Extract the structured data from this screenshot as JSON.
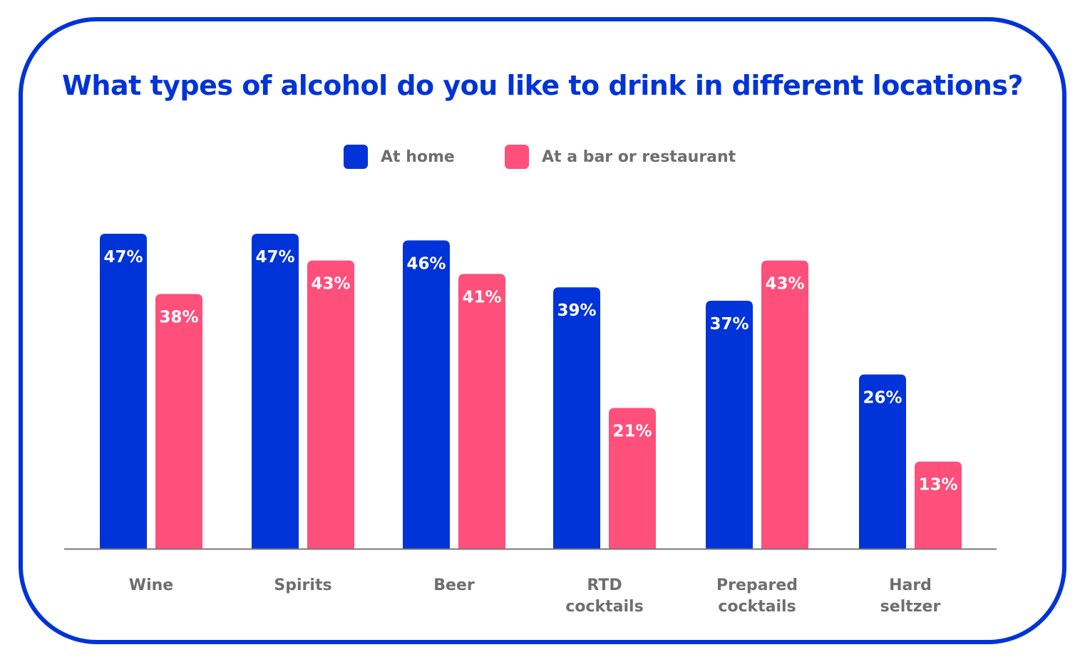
{
  "chart_data": {
    "type": "bar",
    "title": "What types of alcohol do you like to drink in different locations?",
    "categories": [
      [
        "Wine"
      ],
      [
        "Spirits"
      ],
      [
        "Beer"
      ],
      [
        "RTD",
        "cocktails"
      ],
      [
        "Prepared",
        "cocktails"
      ],
      [
        "Hard",
        "seltzer"
      ]
    ],
    "series": [
      {
        "name": "At home",
        "color": "#0033d8",
        "values": [
          47,
          47,
          46,
          39,
          37,
          26
        ],
        "labels": [
          "47%",
          "47%",
          "46%",
          "39%",
          "37%",
          "26%"
        ]
      },
      {
        "name": "At a bar or restaurant",
        "color": "#ff4f7b",
        "values": [
          38,
          43,
          41,
          21,
          43,
          13
        ],
        "labels": [
          "38%",
          "43%",
          "41%",
          "21%",
          "43%",
          "13%"
        ]
      }
    ],
    "xlabel": "",
    "ylabel": "",
    "ylim": [
      0,
      47
    ],
    "grid": false,
    "legend_position": "top-center"
  },
  "colors": {
    "accent": "#0033d8",
    "pink": "#ff4f7b",
    "axis": "#777777",
    "label_text": "#6e6e6e"
  }
}
